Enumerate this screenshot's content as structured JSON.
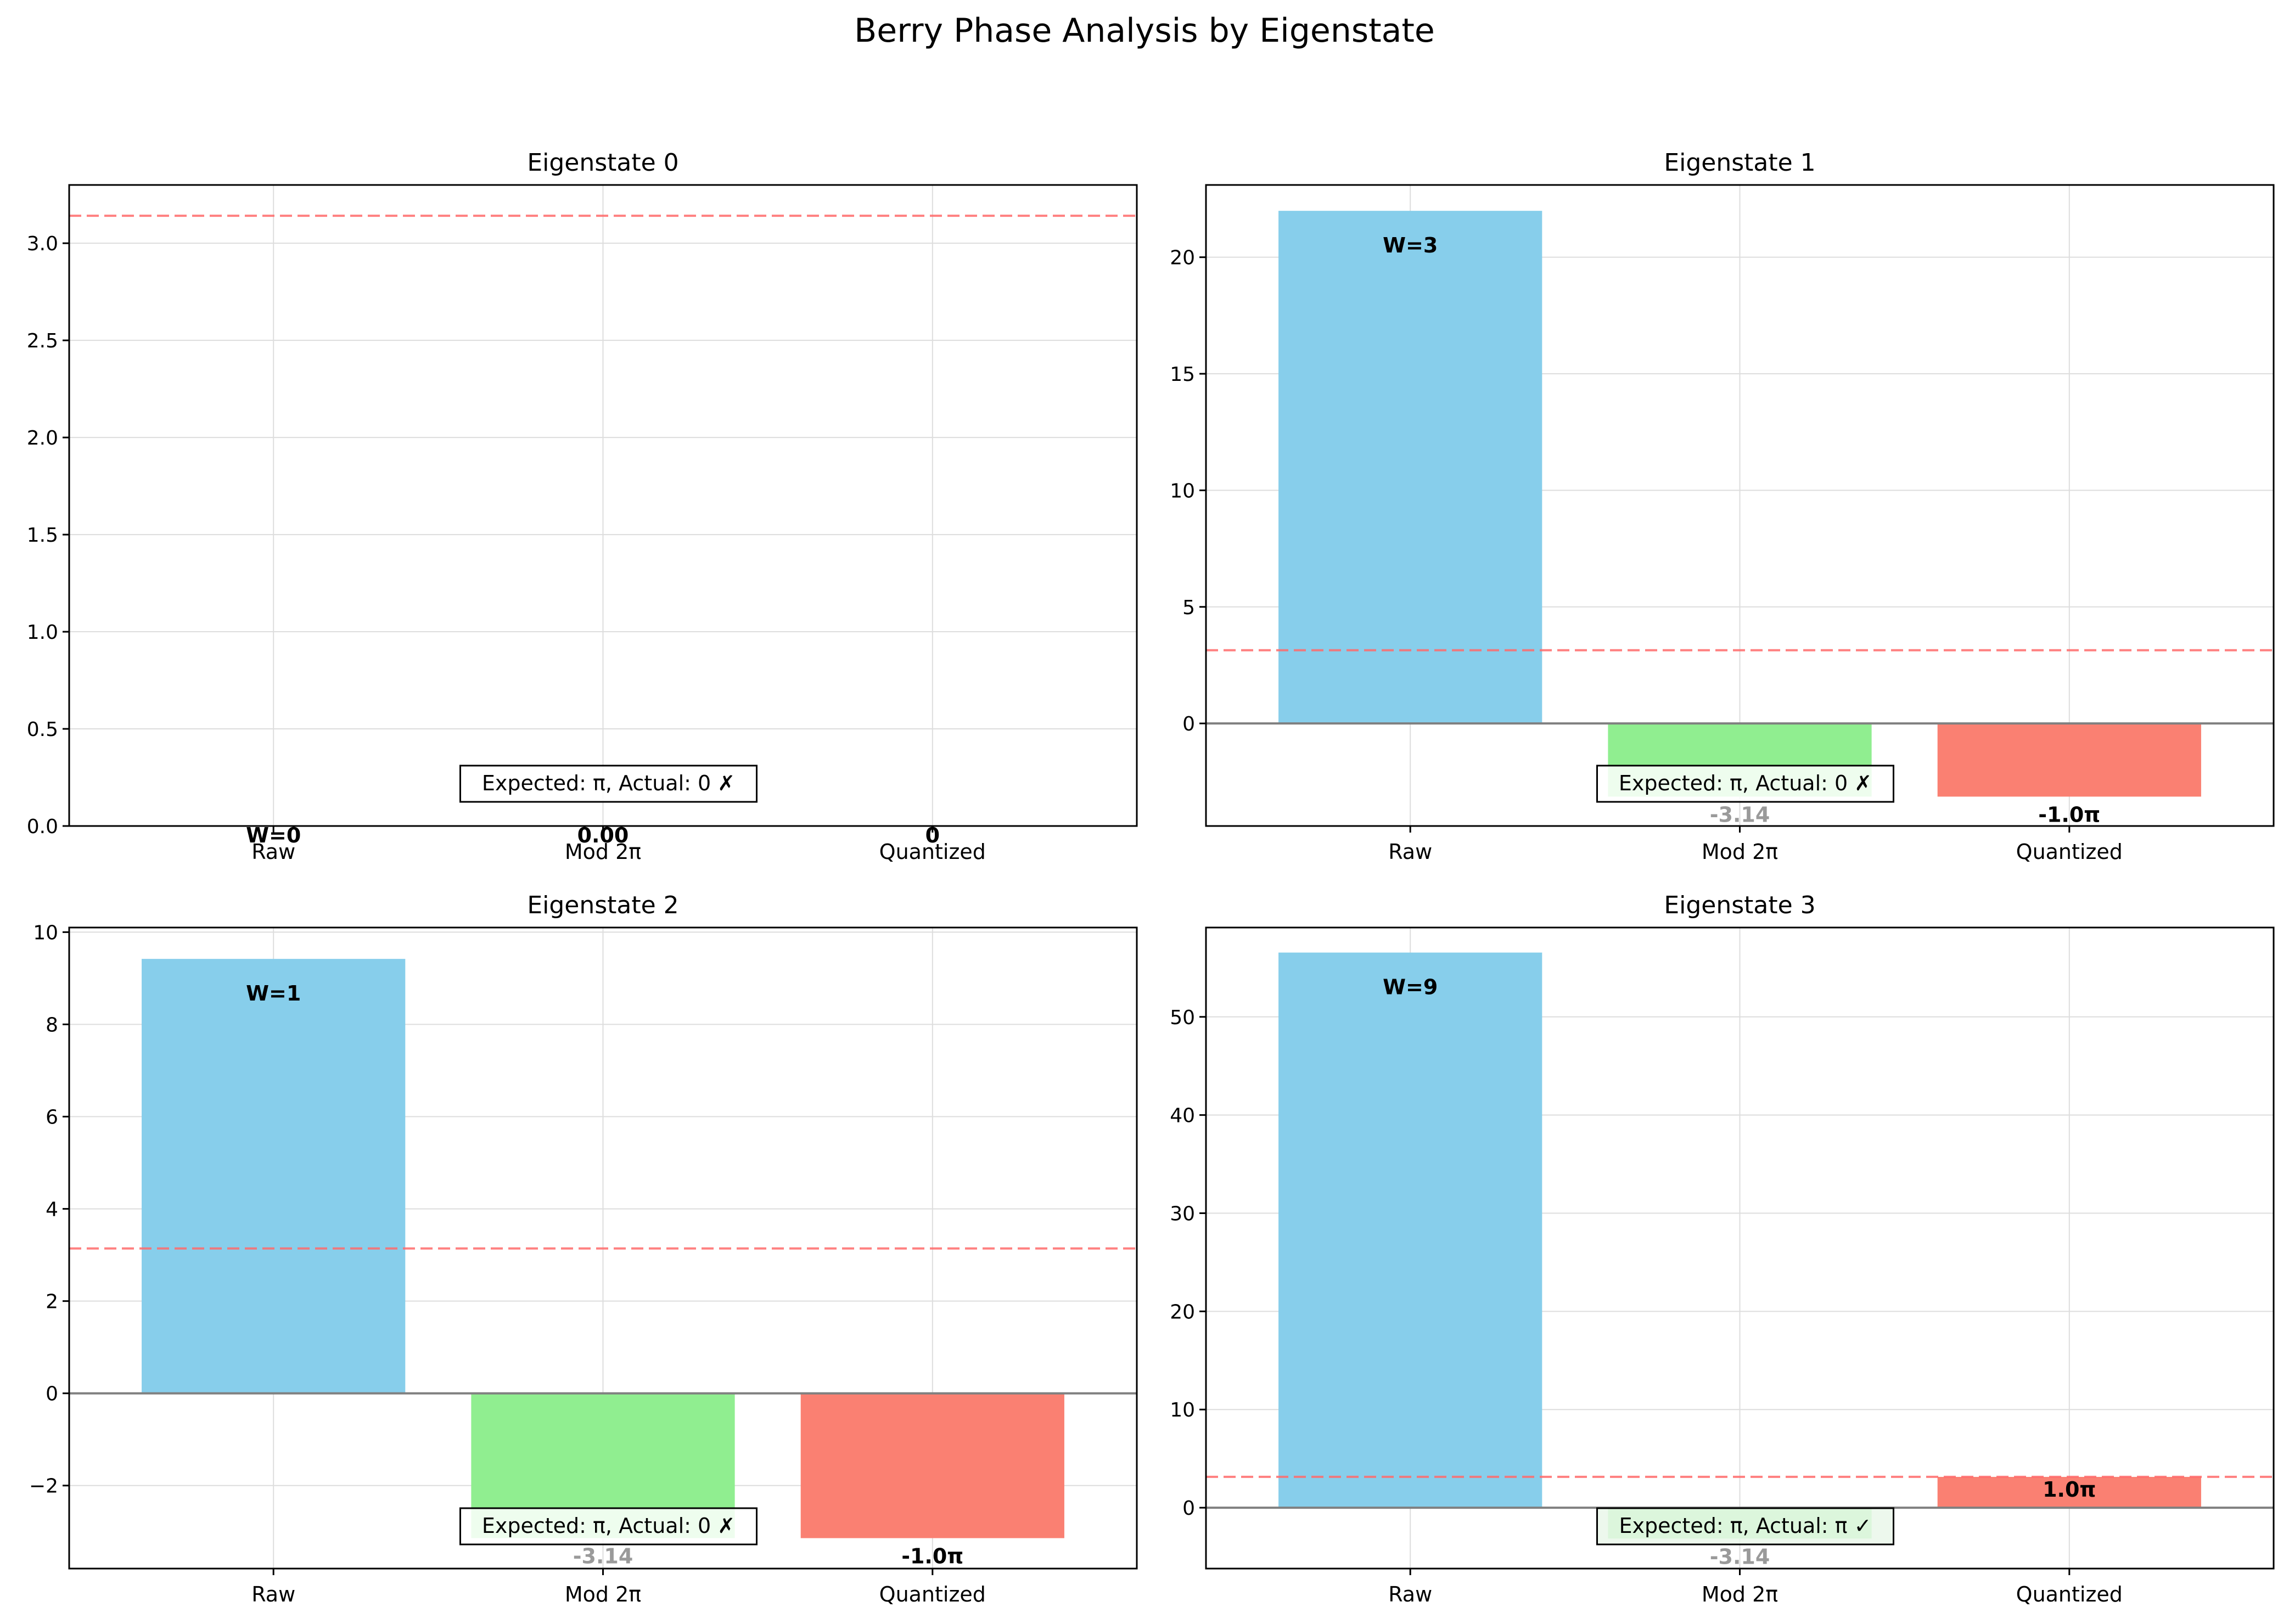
{
  "figure": {
    "suptitle": "Berry Phase Analysis by Eigenstate"
  },
  "colors": {
    "raw": "#87CEEB",
    "mod": "#90EE90",
    "quantized": "#FA8072",
    "reference_line": "#FF6B6B",
    "zero_line": "#808080",
    "grid": "#DDDDDD",
    "infobox_neutral": "#FFFFFF",
    "infobox_match": "#EAF7EA"
  },
  "chart_data": [
    {
      "type": "bar",
      "title": "Eigenstate 0",
      "categories": [
        "Raw",
        "Mod 2π",
        "Quantized"
      ],
      "values": [
        0.0,
        0.0,
        0.0
      ],
      "bar_labels": [
        "W=0",
        "0.00",
        "0"
      ],
      "reference_line": 3.14159,
      "ylim": [
        0,
        3.3
      ],
      "yticks": [
        0,
        0.5,
        1.0,
        1.5,
        2.0,
        2.5,
        3.0
      ],
      "ytick_labels": [
        "0.0",
        "0.5",
        "1.0",
        "1.5",
        "2.0",
        "2.5",
        "3.0"
      ],
      "info_text": "Expected: π, Actual: 0 ✗",
      "info_match": false,
      "grid": true
    },
    {
      "type": "bar",
      "title": "Eigenstate 1",
      "categories": [
        "Raw",
        "Mod 2π",
        "Quantized"
      ],
      "values": [
        21.99,
        -3.14,
        -3.14
      ],
      "bar_labels": [
        "W=3",
        "-3.14",
        "-1.0π"
      ],
      "reference_line": 3.14159,
      "ylim": [
        -4.4,
        23.1
      ],
      "yticks": [
        0,
        5,
        10,
        15,
        20
      ],
      "ytick_labels": [
        "0",
        "5",
        "10",
        "15",
        "20"
      ],
      "info_text": "Expected: π, Actual: 0 ✗",
      "info_match": false,
      "grid": true
    },
    {
      "type": "bar",
      "title": "Eigenstate 2",
      "categories": [
        "Raw",
        "Mod 2π",
        "Quantized"
      ],
      "values": [
        9.42,
        -3.14,
        -3.14
      ],
      "bar_labels": [
        "W=1",
        "-3.14",
        "-1.0π"
      ],
      "reference_line": 3.14159,
      "ylim": [
        -3.8,
        10.1
      ],
      "yticks": [
        -2,
        0,
        2,
        4,
        6,
        8,
        10
      ],
      "ytick_labels": [
        "−2",
        "0",
        "2",
        "4",
        "6",
        "8",
        "10"
      ],
      "info_text": "Expected: π, Actual: 0 ✗",
      "info_match": false,
      "grid": true
    },
    {
      "type": "bar",
      "title": "Eigenstate 3",
      "categories": [
        "Raw",
        "Mod 2π",
        "Quantized"
      ],
      "values": [
        56.55,
        -3.14,
        3.14
      ],
      "bar_labels": [
        "W=9",
        "-3.14",
        "1.0π"
      ],
      "reference_line": 3.14159,
      "ylim": [
        -6.2,
        59.1
      ],
      "yticks": [
        0,
        10,
        20,
        30,
        40,
        50
      ],
      "ytick_labels": [
        "0",
        "10",
        "20",
        "30",
        "40",
        "50"
      ],
      "info_text": "Expected: π, Actual: π ✓",
      "info_match": true,
      "grid": true
    }
  ]
}
